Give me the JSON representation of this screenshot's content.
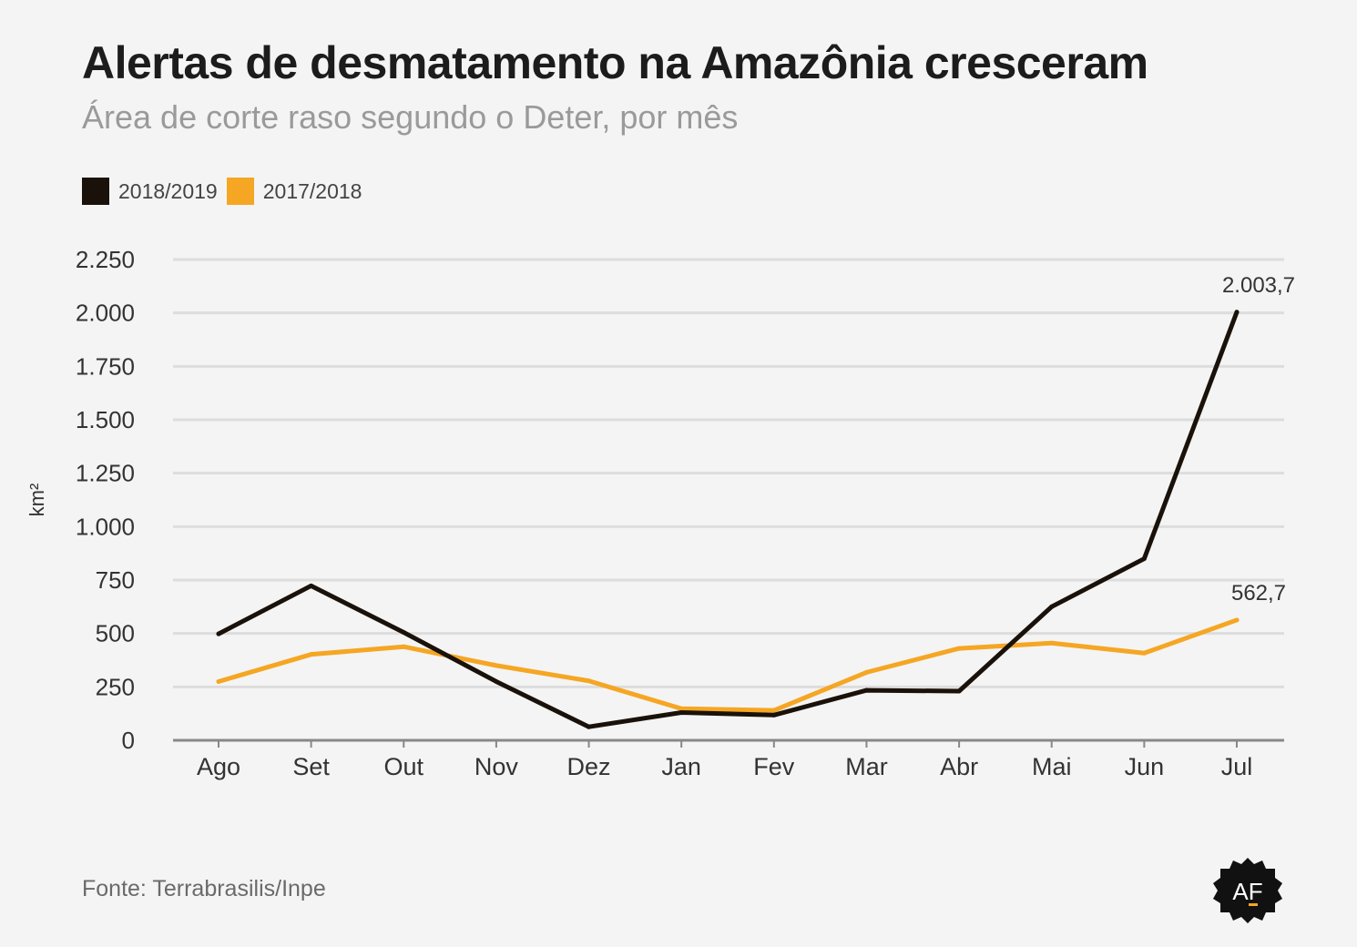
{
  "title": "Alertas de desmatamento na Amazônia cresceram",
  "subtitle": "Área de corte raso segundo o Deter, por mês",
  "source": "Fonte: Terrabrasilis/Inpe",
  "logo_text": "AF",
  "colors": {
    "series_2018_2019": "#1a120a",
    "series_2017_2018": "#f5a623",
    "grid": "#dddddd",
    "axis": "#888888"
  },
  "chart_data": {
    "type": "line",
    "title": "Alertas de desmatamento na Amazônia cresceram",
    "subtitle": "Área de corte raso segundo o Deter, por mês",
    "xlabel": "",
    "ylabel": "km²",
    "ylim": [
      0,
      2250
    ],
    "yticks": [
      0,
      250,
      500,
      750,
      1000,
      1250,
      1500,
      1750,
      2000,
      2250
    ],
    "ytick_labels": [
      "0",
      "250",
      "500",
      "750",
      "1.000",
      "1.250",
      "1.500",
      "1.750",
      "2.000",
      "2.250"
    ],
    "grid": true,
    "legend_position": "top-left",
    "categories": [
      "Ago",
      "Set",
      "Out",
      "Nov",
      "Dez",
      "Jan",
      "Fev",
      "Mar",
      "Abr",
      "Mai",
      "Jun",
      "Jul"
    ],
    "series": [
      {
        "name": "2018/2019",
        "color": "#1a120a",
        "values": [
          498,
          723,
          505,
          275,
          63,
          130,
          118,
          234,
          230,
          625,
          850,
          2003.7
        ],
        "end_label": "2.003,7"
      },
      {
        "name": "2017/2018",
        "color": "#f5a623",
        "values": [
          275,
          402,
          438,
          350,
          278,
          148,
          140,
          318,
          430,
          455,
          408,
          562.7
        ],
        "end_label": "562,7"
      }
    ]
  }
}
